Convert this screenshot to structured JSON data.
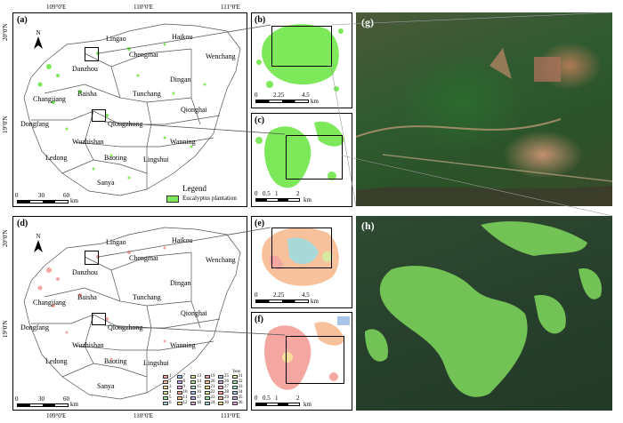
{
  "lon_ticks": [
    "109°0'E",
    "110°0'E",
    "111°0'E"
  ],
  "lat_ticks": [
    "20°0'N",
    "19°0'N"
  ],
  "panel_labels": {
    "a": "(a)",
    "b": "(b)",
    "c": "(c)",
    "d": "(d)",
    "e": "(e)",
    "f": "(f)",
    "g": "(g)",
    "h": "(h)"
  },
  "cities": [
    "Lingao",
    "Haikou",
    "Chengmai",
    "Wenchang",
    "Danzhou",
    "Dingan",
    "Changjiang",
    "Baisha",
    "Tunchang",
    "Qionghai",
    "Dongfang",
    "Qiongzhong",
    "Wuzhishan",
    "Wanning",
    "Ledong",
    "Baoting",
    "Lingshui",
    "Sanya"
  ],
  "north": "N",
  "scale_main": [
    "0",
    "30",
    "60",
    "km"
  ],
  "scale_b": [
    "0",
    "2.25",
    "4.5",
    "km"
  ],
  "scale_c": [
    "0",
    "0.5",
    "1",
    "2",
    "km"
  ],
  "legend": {
    "title": "Legend",
    "item": "Eucalyptus plantation"
  },
  "year_legend": {
    "title": "Year",
    "classes": [
      "1",
      "2",
      "3",
      "4",
      "5",
      "6",
      "7",
      "8",
      "9",
      "10",
      "11",
      "12",
      "13",
      "14",
      "15",
      "16",
      "17",
      "18",
      "19",
      "20",
      "21",
      "22",
      "23",
      "24",
      "25",
      "26",
      "27",
      "28",
      "29",
      "30",
      "31",
      "32",
      "33",
      "34",
      "35",
      "36"
    ]
  },
  "colors": {
    "plantation": "#7de85a",
    "satellite_dark": "#2e5a2a",
    "forest_green": "#72c255",
    "year_palette": [
      "#f4a7a0",
      "#f7c19b",
      "#f7dc9b",
      "#d7e9a0",
      "#a8e0a8",
      "#a8d8d8",
      "#a8c4e8",
      "#c0a8e8",
      "#e8a8d8"
    ]
  }
}
